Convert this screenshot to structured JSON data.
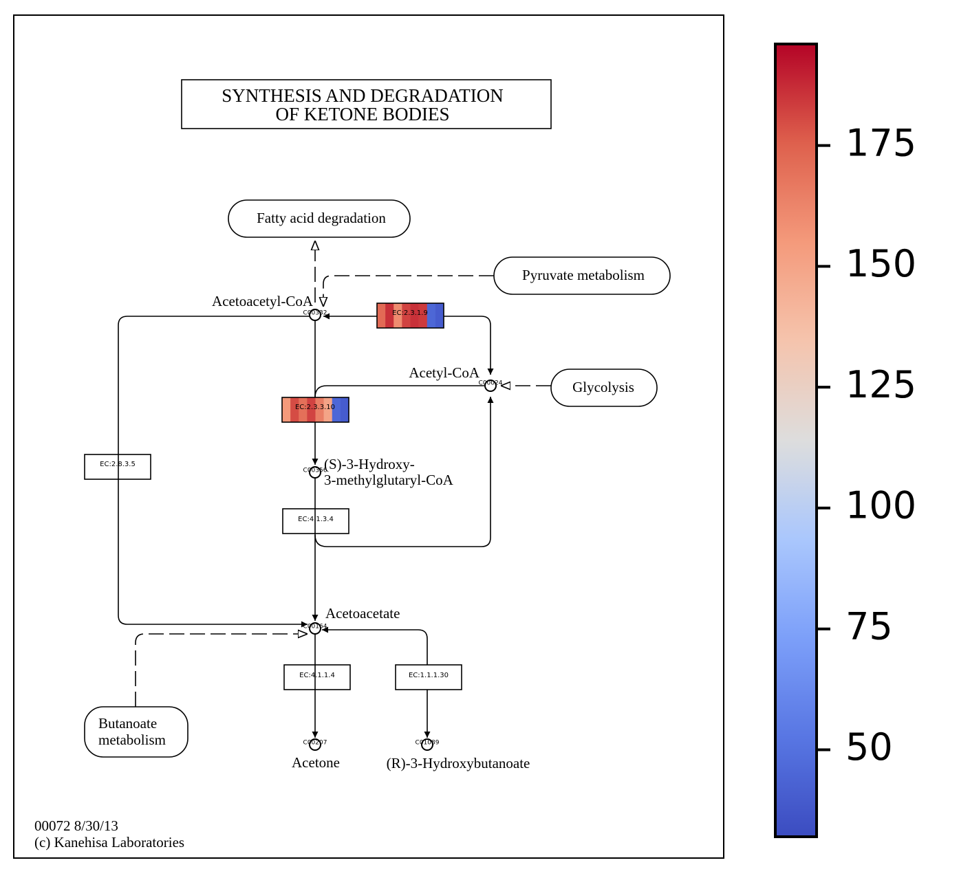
{
  "title": [
    "SYNTHESIS AND DEGRADATION",
    "OF KETONE BODIES"
  ],
  "maps": [
    {
      "label": [
        "Fatty acid degradation"
      ]
    },
    {
      "label": [
        "Pyruvate metabolism"
      ]
    },
    {
      "label": [
        "Glycolysis"
      ]
    },
    {
      "label": [
        "Butanoate",
        "metabolism"
      ]
    }
  ],
  "compounds": [
    {
      "id": "C00332",
      "name": [
        "Acetoacetyl-CoA"
      ]
    },
    {
      "id": "C00024",
      "name": [
        "Acetyl-CoA"
      ]
    },
    {
      "id": "C00356",
      "name": [
        "(S)-3-Hydroxy-",
        "3-methylglutaryl-CoA"
      ]
    },
    {
      "id": "C00164",
      "name": [
        "Acetoacetate"
      ]
    },
    {
      "id": "C00207",
      "name": [
        "Acetone"
      ]
    },
    {
      "id": "C01089",
      "name": [
        "(R)-3-Hydroxybutanoate"
      ]
    }
  ],
  "enzymes": [
    {
      "label": "EC:2.3.1.9",
      "values": [
        172,
        186,
        160,
        182,
        186,
        184,
        45,
        40
      ]
    },
    {
      "label": "EC:2.3.3.10",
      "values": [
        155,
        180,
        170,
        182,
        165,
        150,
        45,
        40
      ]
    },
    {
      "label": "EC:2.8.3.5"
    },
    {
      "label": "EC:4.1.3.4"
    },
    {
      "label": "EC:4.1.1.4"
    },
    {
      "label": "EC:1.1.1.30"
    }
  ],
  "footer": [
    "00072 8/30/13",
    "(c) Kanehisa Laboratories"
  ],
  "colorbar": {
    "lim": [
      32,
      196
    ],
    "ticks": [
      50,
      75,
      100,
      125,
      150,
      175
    ],
    "colormap": "coolwarm"
  }
}
